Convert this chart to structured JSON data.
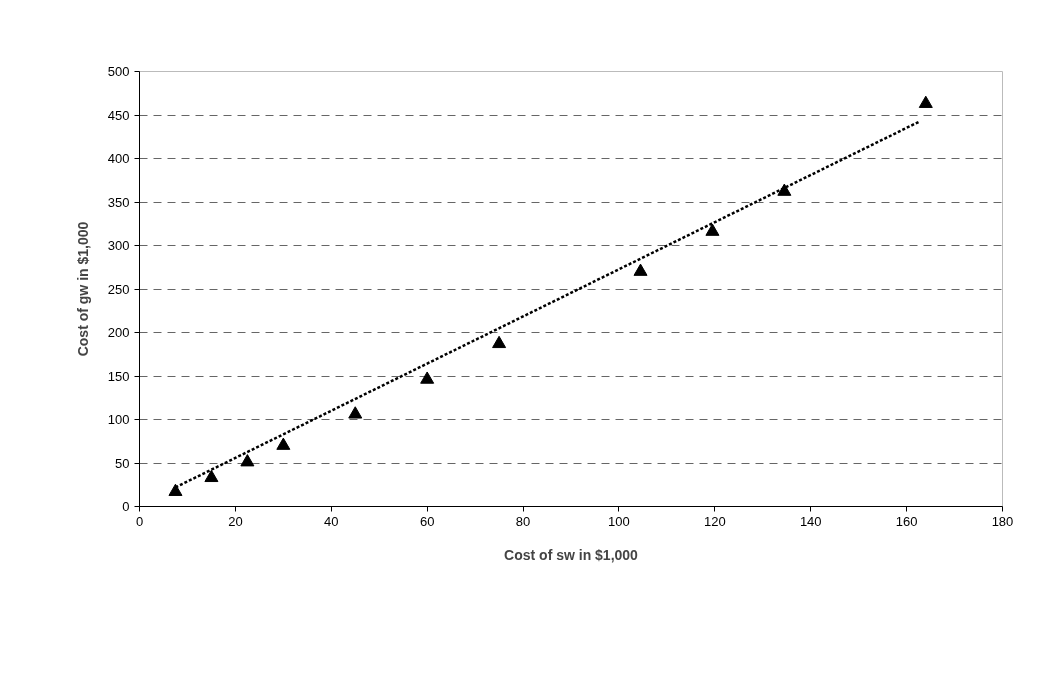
{
  "chart_data": {
    "type": "scatter",
    "xlabel": "Cost of sw in $1,000",
    "ylabel": "Cost of gw in $1,000",
    "xlim": [
      0,
      180
    ],
    "xticks": [
      0,
      20,
      40,
      60,
      80,
      100,
      120,
      140,
      160,
      180
    ],
    "ylim": [
      0,
      500
    ],
    "yticks": [
      0,
      50,
      100,
      150,
      200,
      250,
      300,
      350,
      400,
      450,
      500
    ],
    "grid": "y",
    "series": [
      {
        "color": "#000000",
        "marker": "triangle",
        "x": [
          7.5,
          15,
          22.5,
          30,
          45,
          60,
          75,
          104.5,
          119.5,
          134.5,
          164
        ],
        "values": [
          17,
          33,
          51,
          70,
          106,
          146,
          187,
          270,
          316,
          362,
          463
        ]
      },
      {
        "type": "line",
        "color": "#000000",
        "marker": "none",
        "line_style": "dashed",
        "x": [
          7.5,
          162.5
        ],
        "values": [
          22,
          442
        ]
      }
    ]
  }
}
